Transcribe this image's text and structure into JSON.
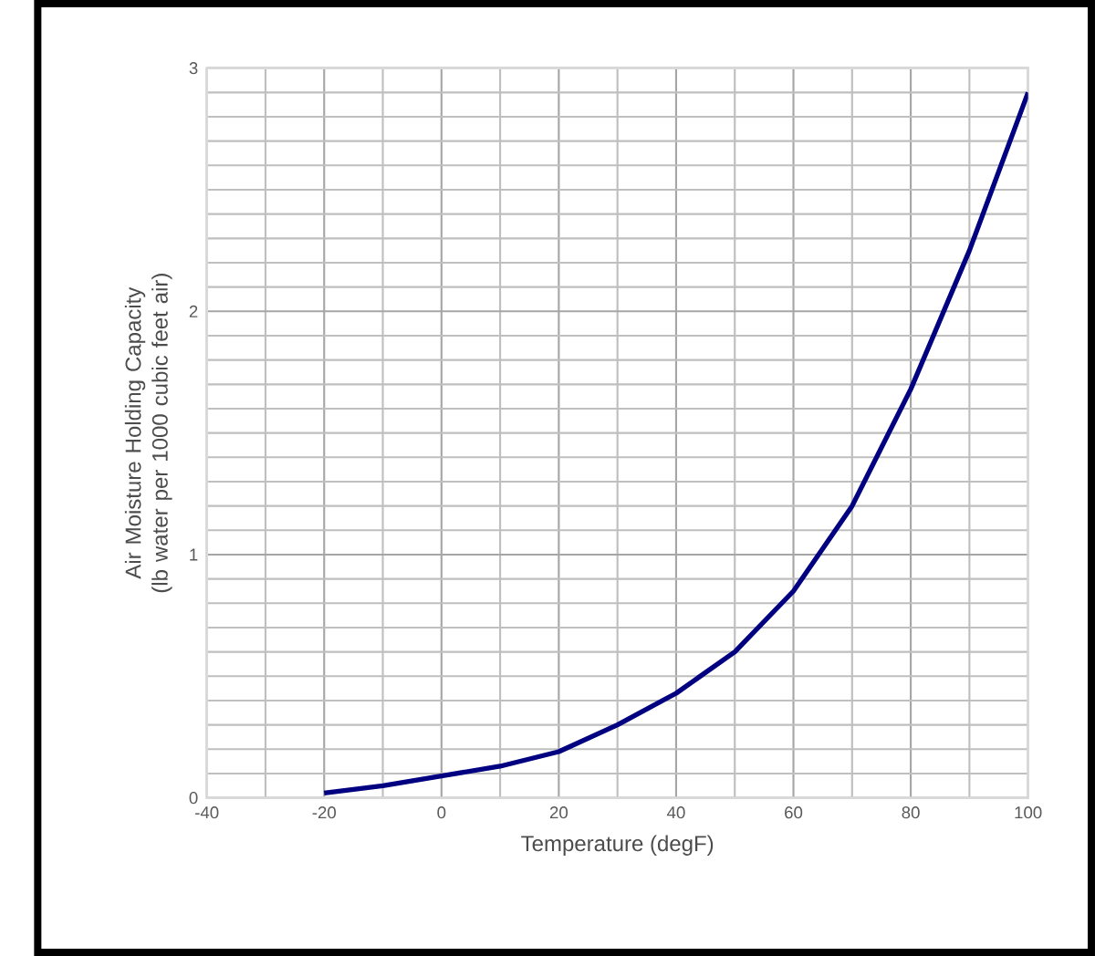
{
  "chart_data": {
    "type": "line",
    "xlabel": "Temperature (degF)",
    "ylabel": "Air Moisture Holding Capacity (lb water per 1000 cubic feet air)",
    "x": [
      -20,
      -10,
      0,
      10,
      20,
      30,
      40,
      50,
      60,
      70,
      80,
      90,
      100
    ],
    "series": [
      {
        "color": "#000080",
        "values": [
          0.02,
          0.05,
          0.09,
          0.13,
          0.19,
          0.3,
          0.43,
          0.6,
          0.85,
          1.2,
          1.68,
          2.25,
          2.9
        ]
      }
    ],
    "xlim": [
      -40,
      100
    ],
    "ylim": [
      0,
      3
    ],
    "xticks": [
      -40,
      -20,
      0,
      20,
      40,
      60,
      80,
      100
    ],
    "yticks": [
      0,
      1,
      2,
      3
    ],
    "grid": true,
    "marker": "none",
    "line_style": "solid"
  }
}
